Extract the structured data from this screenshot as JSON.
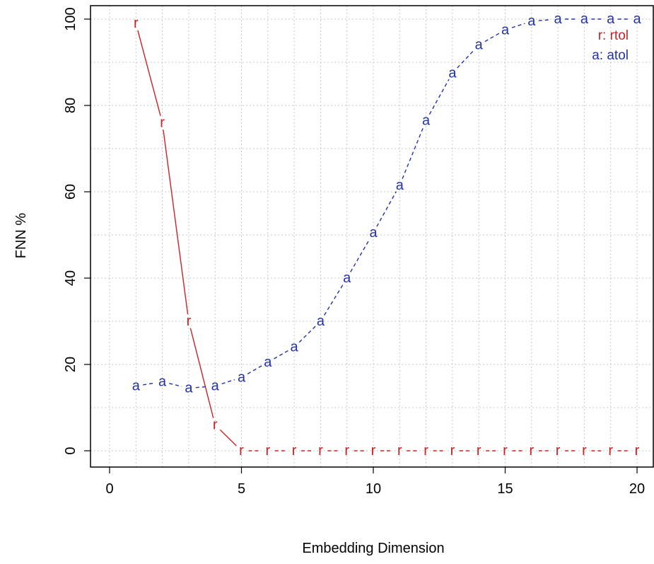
{
  "chart_data": {
    "type": "line",
    "title": "",
    "xlabel": "Embedding Dimension",
    "ylabel": "FNN %",
    "xlim": [
      0,
      20
    ],
    "ylim": [
      0,
      100
    ],
    "x_ticks": [
      0,
      5,
      10,
      15,
      20
    ],
    "x_tick_labels": [
      "0",
      "5",
      "10",
      "15",
      "20"
    ],
    "y_ticks": [
      0,
      20,
      40,
      60,
      80,
      100
    ],
    "y_tick_labels": [
      "0",
      "20",
      "40",
      "60",
      "80",
      "100"
    ],
    "grid": true,
    "grid_style": "dotted",
    "legend": {
      "placement": "top-right",
      "entries": [
        "r: rtol",
        "a: atol"
      ]
    },
    "x": [
      1,
      2,
      3,
      4,
      5,
      6,
      7,
      8,
      9,
      10,
      11,
      12,
      13,
      14,
      15,
      16,
      17,
      18,
      19,
      20
    ],
    "series": [
      {
        "name": "rtol",
        "symbol": "r",
        "color": "#cc2222",
        "line_style": "solid-then-dashed",
        "values": [
          99,
          76,
          30,
          6,
          0,
          0,
          0,
          0,
          0,
          0,
          0,
          0,
          0,
          0,
          0,
          0,
          0,
          0,
          0,
          0
        ]
      },
      {
        "name": "atol",
        "symbol": "a",
        "color": "#2233aa",
        "line_style": "dashed",
        "values": [
          15,
          16,
          14.5,
          15,
          17,
          20.5,
          24,
          30,
          40,
          50.5,
          61.5,
          76.5,
          87.5,
          94,
          97.5,
          99.5,
          100,
          100,
          100,
          100
        ]
      }
    ]
  }
}
